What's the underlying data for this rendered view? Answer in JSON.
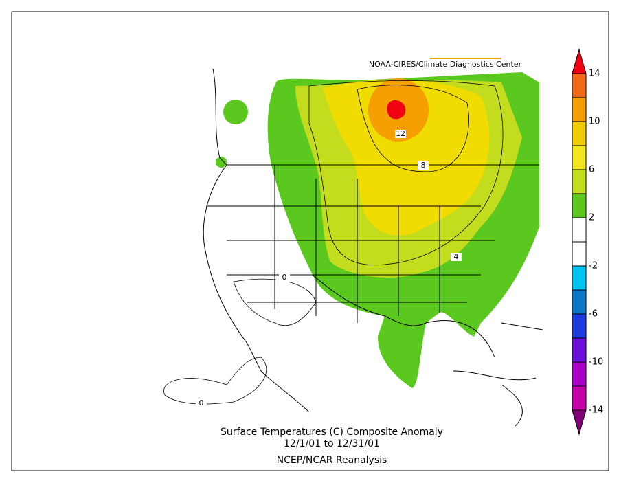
{
  "header": {
    "credit": "NOAA-CIRES/Climate Diagnostics Center"
  },
  "caption": {
    "line1": "Surface Temperatures (C)   Composite Anomaly",
    "line2": "12/1/01  to 12/31/01",
    "line3": "NCEP/NCAR Reanalysis"
  },
  "contour_labels": [
    "12",
    "8",
    "4",
    "0",
    "0"
  ],
  "legend": {
    "levels": [
      14,
      10,
      6,
      2,
      -2,
      -6,
      -10,
      -14
    ],
    "colors": [
      "#f00010",
      "#f06a18",
      "#f5a000",
      "#f0cc00",
      "#f2e61e",
      "#c4dc1e",
      "#5ac81e",
      "#ffffff",
      "#ffffff",
      "#00c4f0",
      "#0a78c8",
      "#1e3cdc",
      "#6a10d8",
      "#a800c8",
      "#c800a8",
      "#800078"
    ]
  }
}
